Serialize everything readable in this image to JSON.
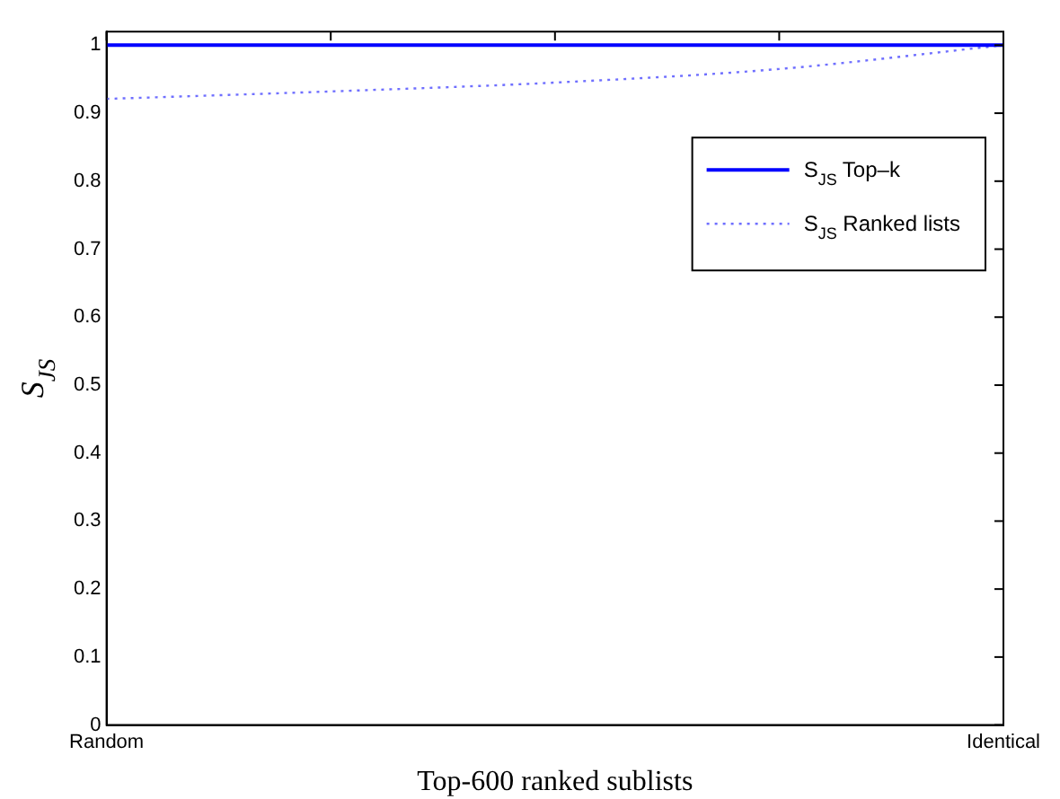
{
  "chart_data": {
    "type": "line",
    "xlabel": "Top-600 ranked sublists",
    "ylabel": "S$_{JS}$",
    "categories": [
      "Random",
      null,
      null,
      null,
      "Identical"
    ],
    "ylim": [
      0,
      1.02
    ],
    "yticks": [
      0,
      0.1,
      0.2,
      0.3,
      0.4,
      0.5,
      0.6,
      0.7,
      0.8,
      0.9,
      1
    ],
    "series": [
      {
        "name": "S$_{JS}$ Top–k",
        "color": "#0000ff",
        "values": [
          1,
          1,
          1,
          1,
          1
        ],
        "line_style": "solid"
      },
      {
        "name": "S$_{JS}$ Ranked lists",
        "color": "#6f6fff",
        "values": [
          0.921,
          0.932,
          0.945,
          0.965,
          1
        ],
        "line_style": "dotted"
      }
    ],
    "legend": "top right",
    "grid": false,
    "marker": "none"
  }
}
